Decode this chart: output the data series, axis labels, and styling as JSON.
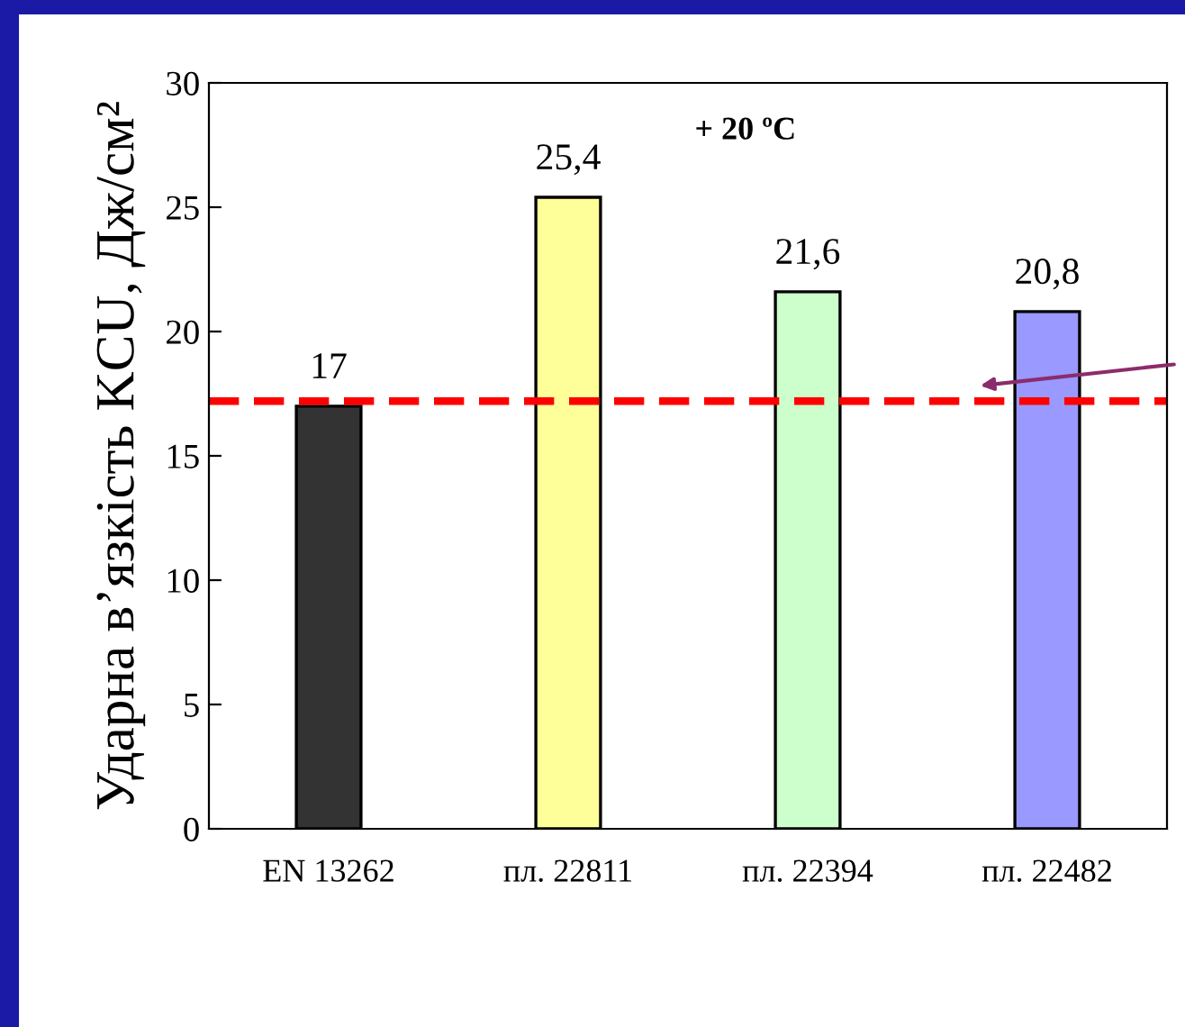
{
  "chart_data": {
    "type": "bar",
    "ylabel": "Ударна в’язкість KCU, Дж/см²",
    "categories": [
      "EN 13262",
      "пл. 22811",
      "пл. 22394",
      "пл. 22482"
    ],
    "values": [
      17,
      25.4,
      21.6,
      20.8
    ],
    "value_labels": [
      "17",
      "25,4",
      "21,6",
      "20,8"
    ],
    "colors": [
      "#333333",
      "#ffff99",
      "#ccffcc",
      "#9999ff"
    ],
    "ylim": [
      0,
      30
    ],
    "yticks": [
      0,
      5,
      10,
      15,
      20,
      25,
      30
    ],
    "annotations": [
      "+ 20 ºC"
    ],
    "ref_lines": [
      {
        "axis": "y",
        "value": 17.2,
        "color": "#ff0000",
        "line_style": "dashed"
      }
    ],
    "grid": false,
    "legend": false
  }
}
